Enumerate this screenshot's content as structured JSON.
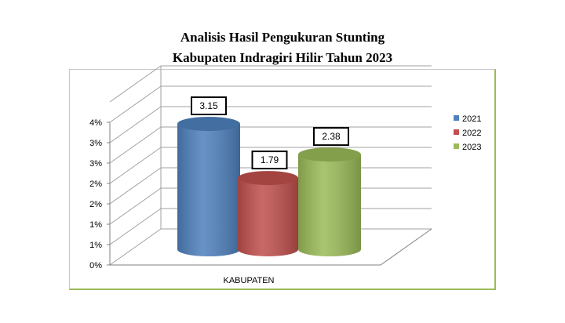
{
  "chart_data": {
    "type": "bar",
    "title": "Analisis Hasil Pengukuran Stunting",
    "subtitle": "Kabupaten Indragiri Hilir Tahun 2023",
    "categories": [
      "KABUPATEN"
    ],
    "series": [
      {
        "name": "2021",
        "values": [
          3.15
        ],
        "color": "#4f81bd"
      },
      {
        "name": "2022",
        "values": [
          1.79
        ],
        "color": "#c0504d"
      },
      {
        "name": "2023",
        "values": [
          2.38
        ],
        "color": "#9bbb59"
      }
    ],
    "data_labels": [
      "3.15",
      "1.79",
      "2.38"
    ],
    "y_tick_labels": [
      "0%",
      "1%",
      "1%",
      "2%",
      "2%",
      "3%",
      "3%",
      "4%"
    ],
    "ylim": [
      0,
      3.5
    ],
    "grid": true,
    "legend": "right",
    "style": "3d-cylinder"
  }
}
